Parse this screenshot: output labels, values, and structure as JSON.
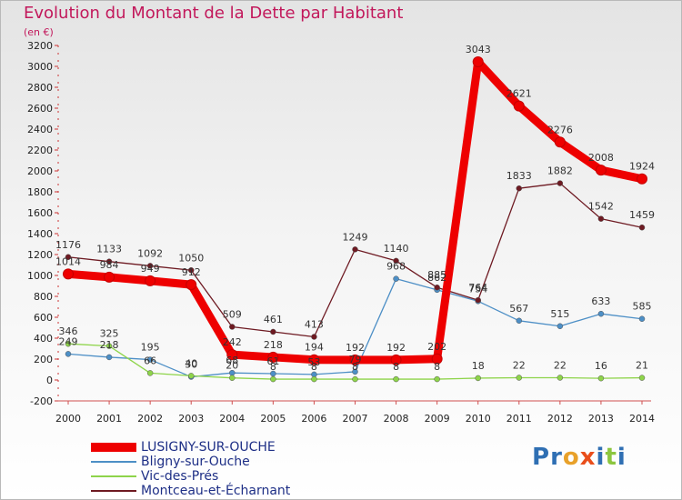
{
  "title": "Evolution du Montant de la Dette par Habitant",
  "unit": "(en €)",
  "logo_text": "Proxiti",
  "chart_data": {
    "type": "line",
    "title": "Evolution du Montant de la Dette par Habitant",
    "ylabel": "(en €)",
    "xlabel": "",
    "ylim": [
      -200,
      3200
    ],
    "yticks": [
      -200,
      0,
      200,
      400,
      600,
      800,
      1000,
      1200,
      1400,
      1600,
      1800,
      2000,
      2200,
      2400,
      2600,
      2800,
      3000,
      3200
    ],
    "grid": false,
    "legend_position": "bottom-left",
    "x": [
      "2000",
      "2001",
      "2002",
      "2003",
      "2004",
      "2005",
      "2006",
      "2007",
      "2008",
      "2009",
      "2010",
      "2011",
      "2012",
      "2013",
      "2014"
    ],
    "series": [
      {
        "name": "LUSIGNY-SUR-OUCHE",
        "color": "#ee0000",
        "values": [
          1014,
          984,
          949,
          912,
          242,
          218,
          194,
          192,
          192,
          202,
          3043,
          2621,
          2276,
          2008,
          1924
        ]
      },
      {
        "name": "Bligny-sur-Ouche",
        "color": "#4d8fc6",
        "values": [
          249,
          218,
          195,
          30,
          68,
          61,
          53,
          79,
          968,
          862,
          754,
          567,
          515,
          633,
          585
        ]
      },
      {
        "name": "Vic-des-Prés",
        "color": "#8ed44a",
        "values": [
          346,
          325,
          66,
          40,
          20,
          8,
          8,
          8,
          8,
          8,
          18,
          22,
          22,
          16,
          21
        ]
      },
      {
        "name": "Montceau-et-Écharnant",
        "color": "#6e1a22",
        "values": [
          1176,
          1133,
          1092,
          1050,
          509,
          461,
          413,
          1249,
          1140,
          885,
          764,
          1833,
          1882,
          1542,
          1459
        ]
      }
    ]
  },
  "legend": [
    {
      "label": "LUSIGNY-SUR-OUCHE",
      "color": "#ee0000"
    },
    {
      "label": "Bligny-sur-Ouche",
      "color": "#4d8fc6"
    },
    {
      "label": "Vic-des-Prés",
      "color": "#8ed44a"
    },
    {
      "label": "Montceau-et-Écharnant",
      "color": "#6e1a22"
    }
  ]
}
